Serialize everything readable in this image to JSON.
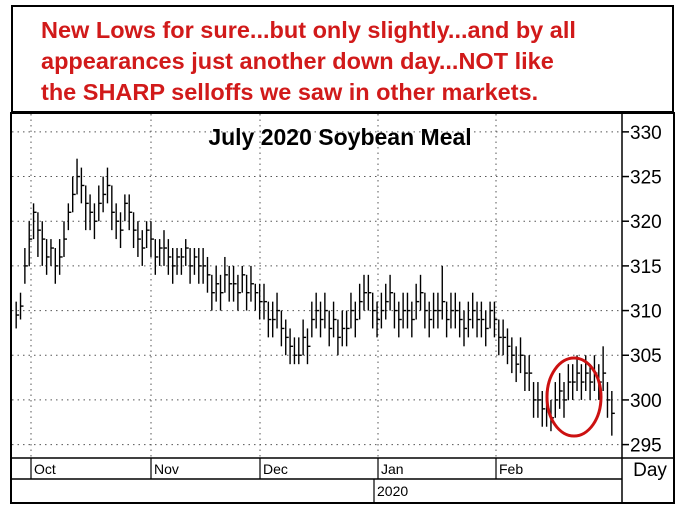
{
  "annotation": {
    "text": "New Lows for sure...but only slightly...and by all\nappearances just another down day...NOT like\nthe SHARP selloffs we saw in other markets.",
    "color": "#d11a1a"
  },
  "chart_data": {
    "type": "ohlc",
    "title": "July 2020 Soybean Meal",
    "ylabel": "",
    "xlabel": "",
    "ylim": [
      293.5,
      332
    ],
    "y_ticks": [
      330,
      325,
      320,
      315,
      310,
      305,
      300,
      295
    ],
    "x_month_labels": [
      "Oct",
      "Nov",
      "Dec",
      "Jan",
      "Feb"
    ],
    "x_year_label": "2020",
    "x_period_label": "Day",
    "grid": true,
    "highlight": {
      "shape": "ellipse",
      "color": "#cc1111",
      "around": "last sessions"
    },
    "bar_color": "#000000",
    "series": [
      {
        "closes": [
          309.5,
          310.5,
          315,
          318,
          321,
          319,
          318,
          316,
          317,
          315,
          316,
          318,
          321,
          323,
          325,
          324,
          322,
          321,
          320,
          322,
          323,
          324,
          321,
          320,
          319,
          322,
          321,
          319,
          318,
          317,
          319,
          318,
          316,
          317,
          317,
          316,
          315,
          316,
          316,
          317,
          315,
          316,
          315,
          315,
          314,
          312,
          313,
          312,
          314,
          313,
          313,
          312,
          314,
          312,
          313,
          312,
          311,
          311,
          309,
          309,
          310,
          308,
          307,
          306,
          305,
          305,
          307,
          306,
          309,
          310,
          309,
          310,
          308,
          309,
          307,
          308,
          308,
          310,
          309,
          311,
          312,
          312,
          310,
          309,
          310,
          311,
          312,
          310,
          309,
          310,
          310,
          309,
          311,
          312,
          310,
          309,
          310,
          310,
          311,
          309,
          310,
          310,
          309,
          308,
          309,
          310,
          309,
          309,
          308,
          310,
          309,
          307,
          307,
          306,
          305,
          304,
          305,
          303,
          303,
          300,
          300,
          299,
          299,
          298,
          300,
          301,
          300,
          302,
          302,
          303,
          302,
          303,
          302,
          303,
          302,
          303,
          300,
          298.5
        ],
        "highs": [
          311,
          312,
          317,
          320,
          322,
          321,
          320,
          318,
          318,
          317,
          318,
          320,
          322,
          325,
          327,
          326,
          324,
          323,
          322,
          324,
          325,
          326,
          324,
          322,
          321,
          323,
          323,
          321,
          320,
          319,
          320,
          320,
          318,
          318,
          319,
          318,
          317,
          317,
          317,
          318,
          317,
          317,
          317,
          317,
          316,
          314,
          315,
          314,
          316,
          315,
          315,
          314,
          315,
          314,
          315,
          313,
          313,
          313,
          311,
          311,
          312,
          310,
          309,
          308,
          307,
          307,
          309,
          308,
          311,
          312,
          311,
          312,
          310,
          311,
          309,
          310,
          310,
          312,
          311,
          313,
          314,
          314,
          312,
          311,
          312,
          313,
          314,
          312,
          311,
          312,
          312,
          311,
          313,
          314,
          312,
          311,
          312,
          312,
          315,
          311,
          312,
          312,
          311,
          310,
          311,
          312,
          311,
          311,
          310,
          311,
          311,
          309,
          309,
          308,
          307,
          306,
          307,
          305,
          305,
          302,
          302,
          301,
          301,
          300,
          302,
          303,
          302,
          304,
          304,
          305,
          304,
          305,
          304,
          305,
          304,
          306,
          302,
          301
        ],
        "lows": [
          308,
          309,
          313,
          315,
          318,
          316,
          315,
          314,
          315,
          313,
          314,
          316,
          319,
          321,
          323,
          322,
          319,
          319,
          318,
          320,
          321,
          322,
          319,
          318,
          317,
          320,
          319,
          317,
          316,
          315,
          317,
          316,
          314,
          315,
          315,
          314,
          313,
          314,
          314,
          315,
          313,
          314,
          313,
          313,
          312,
          310,
          311,
          310,
          312,
          311,
          311,
          310,
          312,
          310,
          311,
          310,
          309,
          309,
          307,
          307,
          308,
          306,
          305,
          304,
          304,
          304,
          305,
          304,
          307,
          308,
          307,
          308,
          306,
          307,
          305,
          306,
          306,
          308,
          307,
          309,
          310,
          310,
          308,
          307,
          308,
          309,
          310,
          308,
          307,
          308,
          308,
          307,
          309,
          310,
          308,
          307,
          308,
          308,
          309,
          307,
          308,
          308,
          307,
          306,
          307,
          308,
          307,
          307,
          306,
          308,
          307,
          305,
          305,
          304,
          303,
          302,
          303,
          301,
          301,
          298,
          298,
          297,
          297,
          296.5,
          298,
          299,
          298,
          300,
          300,
          301,
          300,
          301,
          300,
          301,
          300,
          301,
          298,
          296
        ]
      }
    ]
  }
}
